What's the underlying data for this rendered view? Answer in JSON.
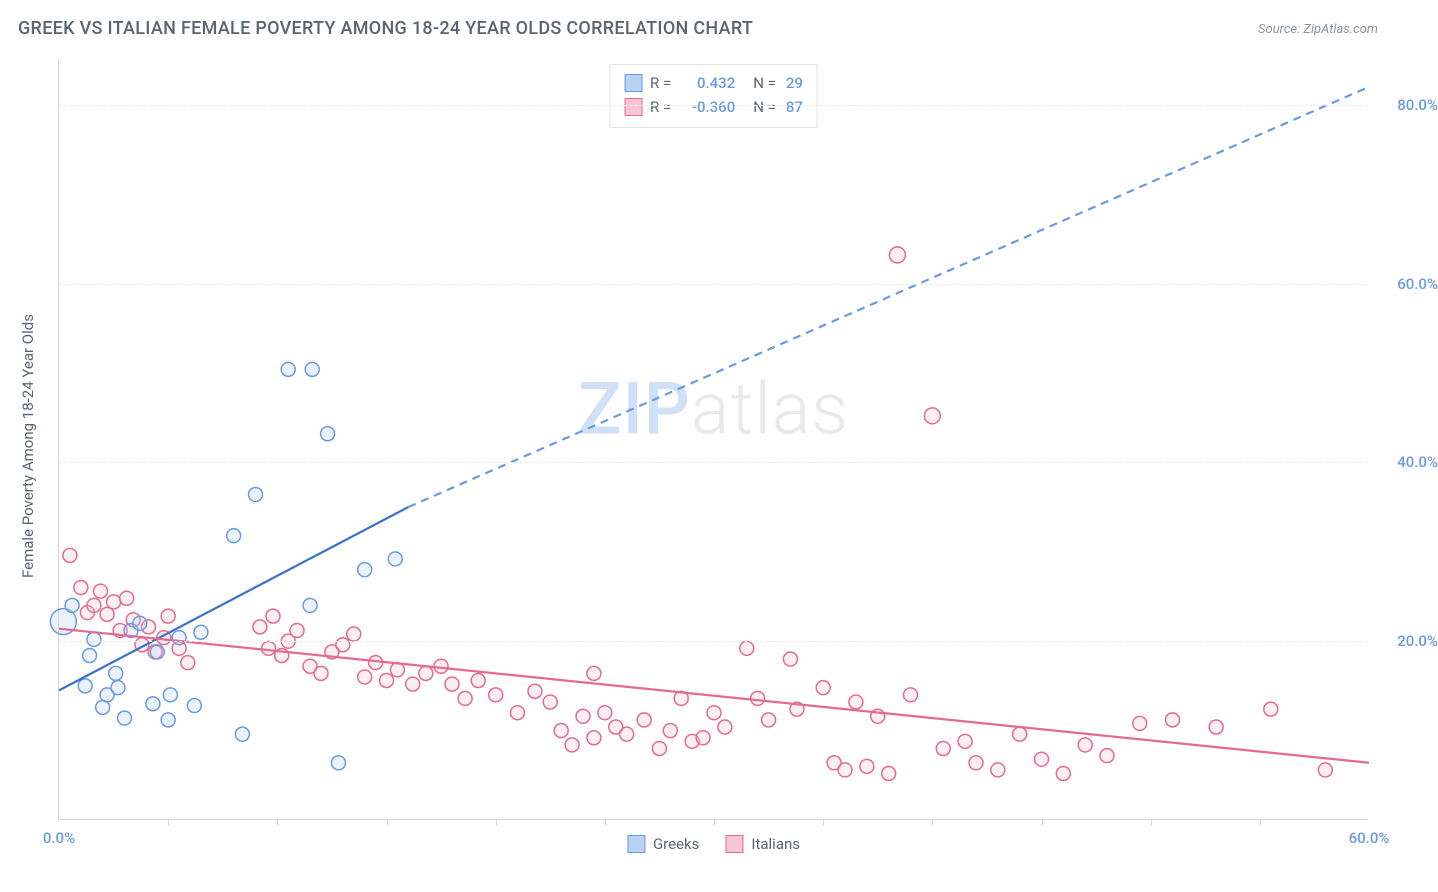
{
  "title": "GREEK VS ITALIAN FEMALE POVERTY AMONG 18-24 YEAR OLDS CORRELATION CHART",
  "source": "Source: ZipAtlas.com",
  "y_axis_label": "Female Poverty Among 18-24 Year Olds",
  "watermark_zip": "ZIP",
  "watermark_atlas": "atlas",
  "chart": {
    "type": "scatter",
    "xlim": [
      0,
      60
    ],
    "ylim": [
      0,
      85
    ],
    "x_ticks_visible": [
      0,
      60
    ],
    "x_minor_ticks": [
      5,
      10,
      15,
      20,
      25,
      30,
      35,
      40,
      45,
      50,
      55
    ],
    "y_gridlines": [
      20,
      40,
      60,
      80
    ],
    "y_tick_labels": [
      "20.0%",
      "40.0%",
      "60.0%",
      "80.0%"
    ],
    "x_tick_labels": {
      "0": "0.0%",
      "60": "60.0%"
    },
    "background_color": "#ffffff",
    "grid_color": "#e7e9eb",
    "axis_color": "#cfd6dc",
    "tick_label_color": "#6a9be0",
    "axis_label_color": "#5b6570",
    "marker_radius": 7,
    "marker_fill_opacity": 0.28,
    "marker_stroke_width": 1.5,
    "series": {
      "greeks": {
        "label": "Greeks",
        "color": "#6a9be0",
        "fill": "#b9d2f3",
        "R": "0.432",
        "N": "29",
        "trend": {
          "x1": 0,
          "y1": 14.5,
          "x2_solid": 16,
          "y2_solid": 35,
          "x2_dash": 60,
          "y2_dash": 82,
          "solid_color": "#3a72c9",
          "dash_color": "#6a9be0",
          "width": 2.2
        },
        "points": [
          [
            0.2,
            22.2,
            13
          ],
          [
            0.6,
            24
          ],
          [
            1.2,
            15
          ],
          [
            1.4,
            18.4
          ],
          [
            1.6,
            20.2
          ],
          [
            2.0,
            12.6
          ],
          [
            2.2,
            14.0
          ],
          [
            2.6,
            16.4
          ],
          [
            2.7,
            14.8
          ],
          [
            3.0,
            11.4
          ],
          [
            3.3,
            21.2
          ],
          [
            3.7,
            22.0
          ],
          [
            4.3,
            13.0
          ],
          [
            4.5,
            18.8
          ],
          [
            5.0,
            11.2
          ],
          [
            5.1,
            14.0
          ],
          [
            5.5,
            20.4
          ],
          [
            6.2,
            12.8
          ],
          [
            6.5,
            21.0
          ],
          [
            8.0,
            31.8
          ],
          [
            8.4,
            9.6
          ],
          [
            9.0,
            36.4
          ],
          [
            10.5,
            50.4
          ],
          [
            11.5,
            24.0
          ],
          [
            11.6,
            50.4
          ],
          [
            12.3,
            43.2
          ],
          [
            12.8,
            6.4
          ],
          [
            14.0,
            28.0
          ],
          [
            15.4,
            29.2
          ]
        ]
      },
      "italians": {
        "label": "Italians",
        "color": "#e46b8f",
        "fill": "#f6c6d7",
        "R": "-0.360",
        "N": "87",
        "trend": {
          "x1": 0,
          "y1": 21.4,
          "x2": 60,
          "y2": 6.4,
          "color": "#e46b8f",
          "width": 2.2
        },
        "points": [
          [
            0.5,
            29.6
          ],
          [
            1.0,
            26.0
          ],
          [
            1.3,
            23.2
          ],
          [
            1.6,
            24.0
          ],
          [
            1.9,
            25.6
          ],
          [
            2.2,
            23.0
          ],
          [
            2.5,
            24.4
          ],
          [
            2.8,
            21.2
          ],
          [
            3.1,
            24.8
          ],
          [
            3.4,
            22.4
          ],
          [
            3.8,
            19.6
          ],
          [
            4.1,
            21.6
          ],
          [
            4.4,
            18.8
          ],
          [
            4.8,
            20.4
          ],
          [
            5.0,
            22.8
          ],
          [
            5.5,
            19.2
          ],
          [
            5.9,
            17.6
          ],
          [
            9.2,
            21.6
          ],
          [
            9.6,
            19.2
          ],
          [
            9.8,
            22.8
          ],
          [
            10.2,
            18.4
          ],
          [
            10.5,
            20.0
          ],
          [
            10.9,
            21.2
          ],
          [
            11.5,
            17.2
          ],
          [
            12.0,
            16.4
          ],
          [
            12.5,
            18.8
          ],
          [
            13.0,
            19.6
          ],
          [
            13.5,
            20.8
          ],
          [
            14.0,
            16.0
          ],
          [
            14.5,
            17.6
          ],
          [
            15.0,
            15.6
          ],
          [
            15.5,
            16.8
          ],
          [
            16.2,
            15.2
          ],
          [
            16.8,
            16.4
          ],
          [
            17.5,
            17.2
          ],
          [
            18.0,
            15.2
          ],
          [
            18.6,
            13.6
          ],
          [
            19.2,
            15.6
          ],
          [
            20.0,
            14.0
          ],
          [
            21.0,
            12.0
          ],
          [
            21.8,
            14.4
          ],
          [
            22.5,
            13.2
          ],
          [
            23.0,
            10.0
          ],
          [
            23.5,
            8.4
          ],
          [
            24.0,
            11.6
          ],
          [
            24.5,
            9.2
          ],
          [
            25.0,
            12.0
          ],
          [
            25.5,
            10.4
          ],
          [
            24.5,
            16.4
          ],
          [
            26.0,
            9.6
          ],
          [
            26.8,
            11.2
          ],
          [
            27.5,
            8.0
          ],
          [
            28.0,
            10.0
          ],
          [
            28.5,
            13.6
          ],
          [
            29.0,
            8.8
          ],
          [
            29.5,
            9.2
          ],
          [
            30.0,
            12.0
          ],
          [
            30.5,
            10.4
          ],
          [
            31.5,
            19.2
          ],
          [
            32.0,
            13.6
          ],
          [
            32.5,
            11.2
          ],
          [
            33.5,
            18.0
          ],
          [
            33.8,
            12.4
          ],
          [
            35.0,
            14.8
          ],
          [
            35.5,
            6.4
          ],
          [
            36.0,
            5.6
          ],
          [
            36.5,
            13.2
          ],
          [
            37.0,
            6.0
          ],
          [
            37.5,
            11.6
          ],
          [
            38.0,
            5.2
          ],
          [
            39.0,
            14.0
          ],
          [
            40.0,
            45.2,
            8
          ],
          [
            40.5,
            8.0
          ],
          [
            41.5,
            8.8
          ],
          [
            38.4,
            63.2,
            8
          ],
          [
            42.0,
            6.4
          ],
          [
            43.0,
            5.6
          ],
          [
            44.0,
            9.6
          ],
          [
            45.0,
            6.8
          ],
          [
            46.0,
            5.2
          ],
          [
            47.0,
            8.4
          ],
          [
            48.0,
            7.2
          ],
          [
            49.5,
            10.8
          ],
          [
            51.0,
            11.2
          ],
          [
            53.0,
            10.4
          ],
          [
            55.5,
            12.4
          ],
          [
            58.0,
            5.6
          ]
        ]
      }
    }
  },
  "legend_top": {
    "rows": [
      {
        "swatch_fill": "#b9d2f3",
        "swatch_border": "#6a9be0",
        "r_label": "R =",
        "r_val": "0.432",
        "n_label": "N =",
        "n_val": "29"
      },
      {
        "swatch_fill": "#f6c6d7",
        "swatch_border": "#e46b8f",
        "r_label": "R =",
        "r_val": "-0.360",
        "n_label": "N =",
        "n_val": "87"
      }
    ]
  },
  "legend_bottom": [
    {
      "fill": "#b9d2f3",
      "border": "#6a9be0",
      "label": "Greeks"
    },
    {
      "fill": "#f6c6d7",
      "border": "#e46b8f",
      "label": "Italians"
    }
  ]
}
